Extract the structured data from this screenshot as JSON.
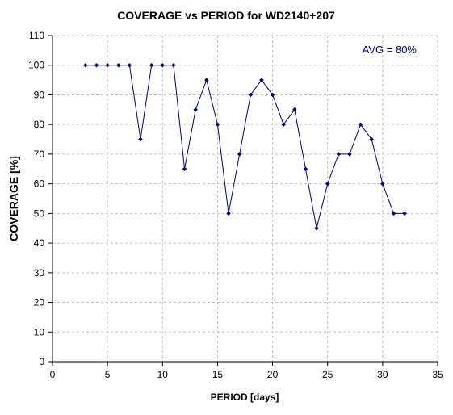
{
  "chart_data": {
    "type": "line",
    "title": "COVERAGE vs PERIOD for WD2140+207",
    "xlabel": "PERIOD [days]",
    "ylabel": "COVERAGE [%]",
    "xlim": [
      0,
      35
    ],
    "ylim": [
      0,
      110
    ],
    "x_ticks": [
      0,
      5,
      10,
      15,
      20,
      25,
      30,
      35
    ],
    "y_ticks": [
      0,
      10,
      20,
      30,
      40,
      50,
      60,
      70,
      80,
      90,
      100,
      110
    ],
    "grid": true,
    "legend": "none",
    "annotation": "AVG = 80%",
    "annotation_placement": "top-right",
    "colors": {
      "series": "#000080",
      "annotation": "#000080",
      "grid": "#c0c0c0",
      "axis": "#000000"
    },
    "series": [
      {
        "x": [
          3,
          4,
          5,
          6,
          7,
          8,
          9,
          10,
          11,
          12,
          13,
          14,
          15,
          16,
          17,
          18,
          19,
          20,
          21,
          22,
          23,
          24,
          25,
          26,
          27,
          28,
          29,
          30,
          31,
          32
        ],
        "values": [
          100,
          100,
          100,
          100,
          100,
          75,
          100,
          100,
          100,
          65,
          85,
          95,
          80,
          50,
          70,
          90,
          95,
          90,
          80,
          85,
          65,
          45,
          60,
          70,
          70,
          80,
          75,
          60,
          50,
          50
        ]
      }
    ]
  }
}
